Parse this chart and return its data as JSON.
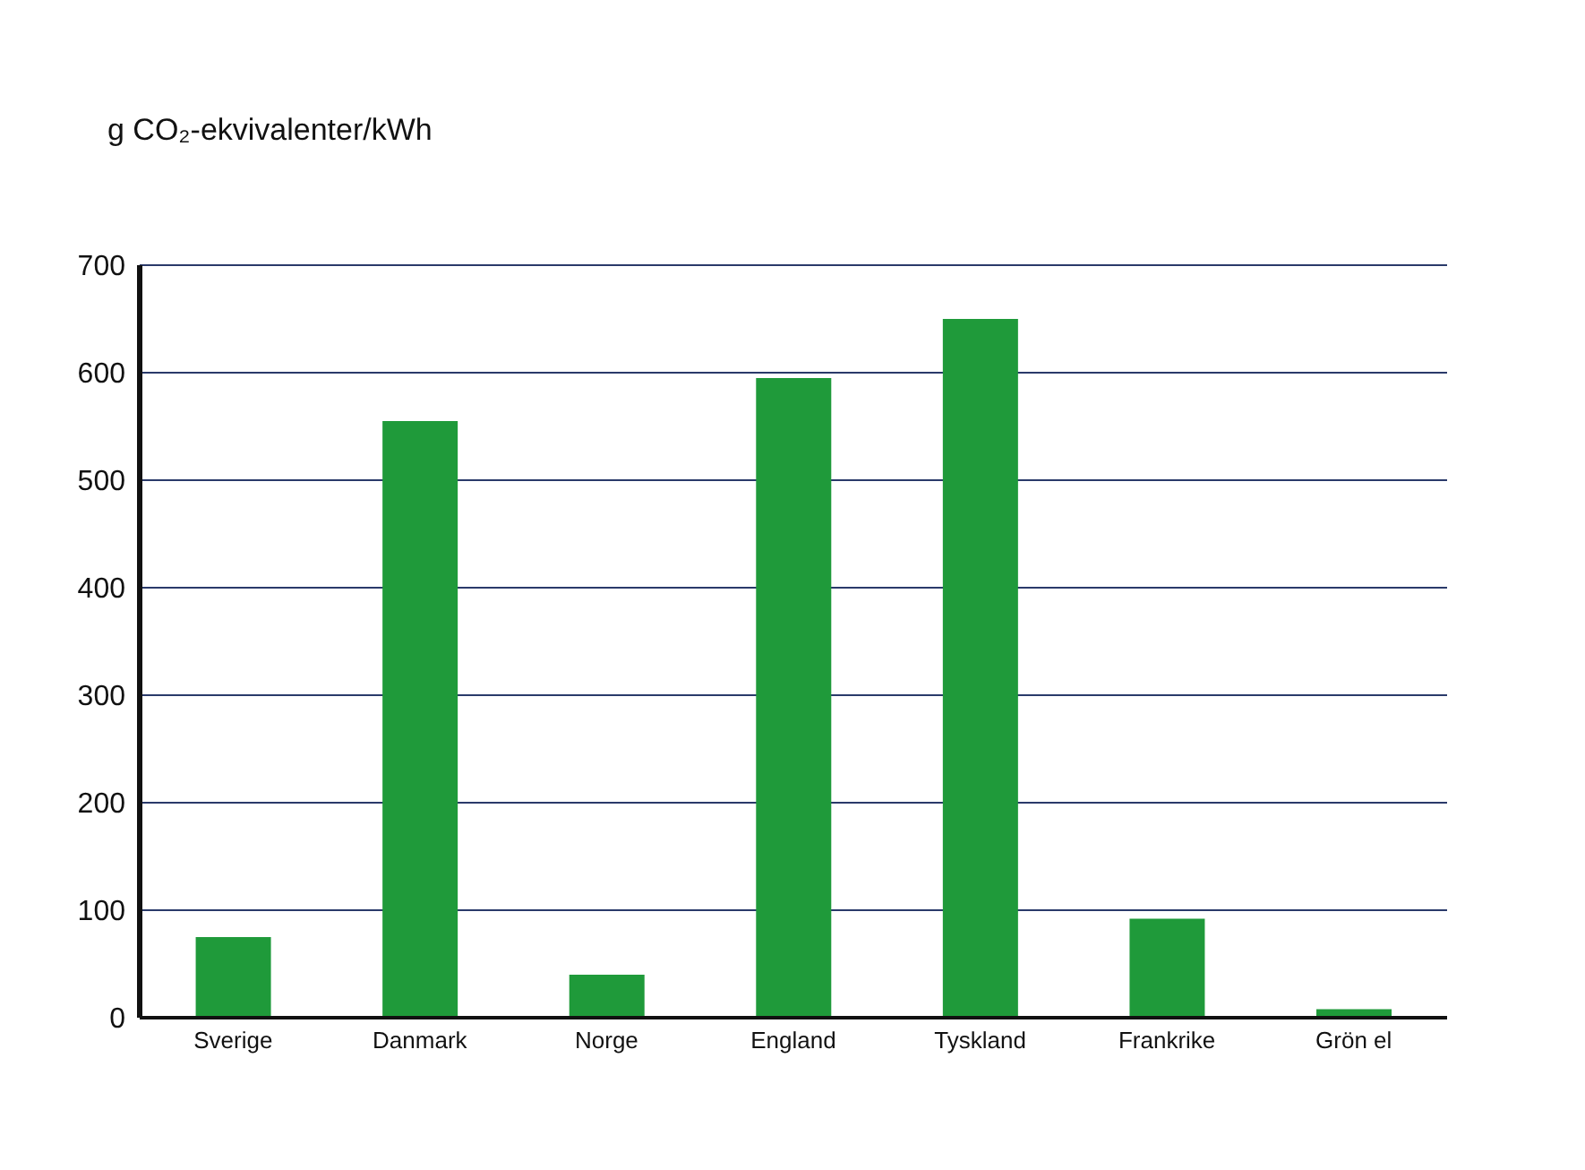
{
  "chart_data": {
    "type": "bar",
    "ylabel": "g CO₂-ekvivalenter/kWh",
    "categories": [
      "Sverige",
      "Danmark",
      "Norge",
      "England",
      "Tyskland",
      "Frankrike",
      "Grön el"
    ],
    "values": [
      75,
      555,
      40,
      595,
      650,
      92,
      8
    ],
    "color": "#1f9a3a",
    "ylim": [
      0,
      700
    ],
    "yticks": [
      0,
      100,
      200,
      300,
      400,
      500,
      600,
      700
    ],
    "grid": "y",
    "legend": false
  }
}
